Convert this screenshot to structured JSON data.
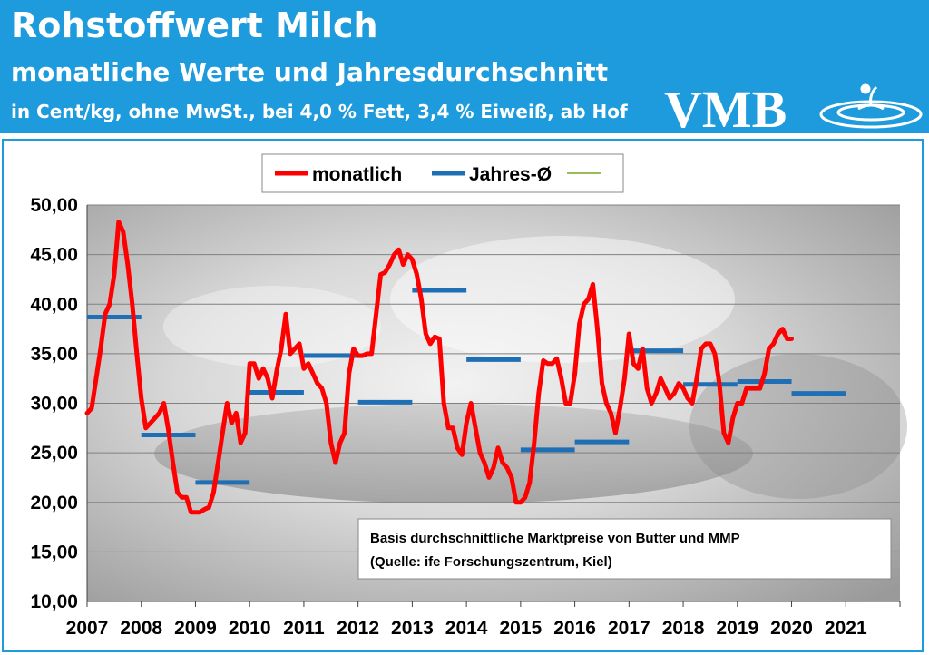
{
  "header": {
    "title": "Rohstoffwert Milch",
    "subtitle": "monatliche Werte und Jahresdurchschnitt",
    "unit_line": "in Cent/kg, ohne MwSt., bei 4,0 % Fett, 3,4 % Eiweiß, ab Hof",
    "logo_text": "VMB"
  },
  "colors": {
    "header_bg": "#1e9bdc",
    "monthly": "#ff0000",
    "annual": "#1f6fb5",
    "third": "#9bbb59"
  },
  "chart_data": {
    "type": "line",
    "ylim": [
      10,
      50
    ],
    "yticks": [
      10,
      15,
      20,
      25,
      30,
      35,
      40,
      45,
      50
    ],
    "ytick_labels": [
      "10,00",
      "15,00",
      "20,00",
      "25,00",
      "30,00",
      "35,00",
      "40,00",
      "45,00",
      "50,00"
    ],
    "xlim": [
      2007,
      2022
    ],
    "xtick_labels": [
      "2007",
      "2008",
      "2009",
      "2010",
      "2011",
      "2012",
      "2013",
      "2014",
      "2015",
      "2016",
      "2017",
      "2018",
      "2019",
      "2020",
      "2021"
    ],
    "legend": {
      "placement": "top-center",
      "entries": [
        "monatlich",
        "Jahres-Ø",
        ""
      ]
    },
    "annotation": [
      "Basis durchschnittliche  Marktpreise  von Butter und MMP",
      "(Quelle: ife Forschungszentrum,  Kiel)"
    ],
    "series": [
      {
        "name": "monatlich",
        "start_year": 2007,
        "values": [
          29.0,
          29.5,
          32.5,
          35.5,
          39.0,
          40.0,
          43.0,
          48.3,
          47.3,
          44.0,
          40.0,
          35.0,
          30.5,
          27.5,
          28.0,
          28.5,
          29.0,
          30.0,
          27.3,
          24.0,
          21.0,
          20.5,
          20.5,
          19.0,
          19.0,
          19.0,
          19.3,
          19.5,
          21.0,
          24.0,
          27.0,
          30.0,
          28.0,
          29.0,
          26.0,
          27.0,
          34.0,
          34.0,
          32.5,
          33.5,
          32.5,
          30.5,
          33.3,
          35.5,
          39.0,
          35.0,
          35.5,
          36.0,
          33.5,
          34.0,
          33.0,
          32.0,
          31.5,
          30.0,
          26.0,
          24.0,
          26.0,
          27.0,
          33.0,
          35.5,
          34.8,
          34.8,
          35.0,
          35.0,
          39.0,
          43.0,
          43.2,
          44.0,
          45.0,
          45.5,
          44.0,
          45.0,
          44.5,
          43.0,
          40.5,
          37.0,
          36.0,
          36.7,
          36.5,
          30.0,
          27.5,
          27.5,
          25.5,
          24.8,
          28.0,
          30.0,
          27.5,
          25.0,
          24.0,
          22.5,
          23.5,
          25.5,
          24.0,
          23.5,
          22.5,
          20.0,
          20.0,
          20.5,
          22.0,
          26.0,
          31.0,
          34.3,
          34.0,
          34.0,
          34.5,
          32.5,
          30.0,
          30.0,
          33.0,
          38.0,
          40.0,
          40.5,
          42.0,
          37.5,
          32.0,
          30.0,
          29.0,
          27.0,
          29.5,
          32.5,
          37.0,
          34.0,
          33.5,
          35.5,
          31.5,
          30.0,
          31.0,
          32.5,
          31.5,
          30.5,
          31.0,
          32.0,
          31.5,
          30.5,
          30.0,
          32.5,
          35.5,
          36.0,
          36.0,
          35.0,
          32.0,
          27.0,
          26.0,
          28.5,
          30.0,
          30.0,
          31.5,
          31.5,
          31.5,
          31.5,
          33.0,
          35.5,
          36.0,
          37.0,
          37.5,
          36.5,
          36.5
        ]
      },
      {
        "name": "Jahres-Ø",
        "years": [
          2007,
          2008,
          2009,
          2010,
          2011,
          2012,
          2013,
          2014,
          2015,
          2016,
          2017,
          2018,
          2019,
          2020
        ],
        "values": [
          38.7,
          26.8,
          22.0,
          31.1,
          34.8,
          30.1,
          41.4,
          34.4,
          25.3,
          26.1,
          35.3,
          31.9,
          32.2,
          31.0
        ]
      }
    ]
  }
}
